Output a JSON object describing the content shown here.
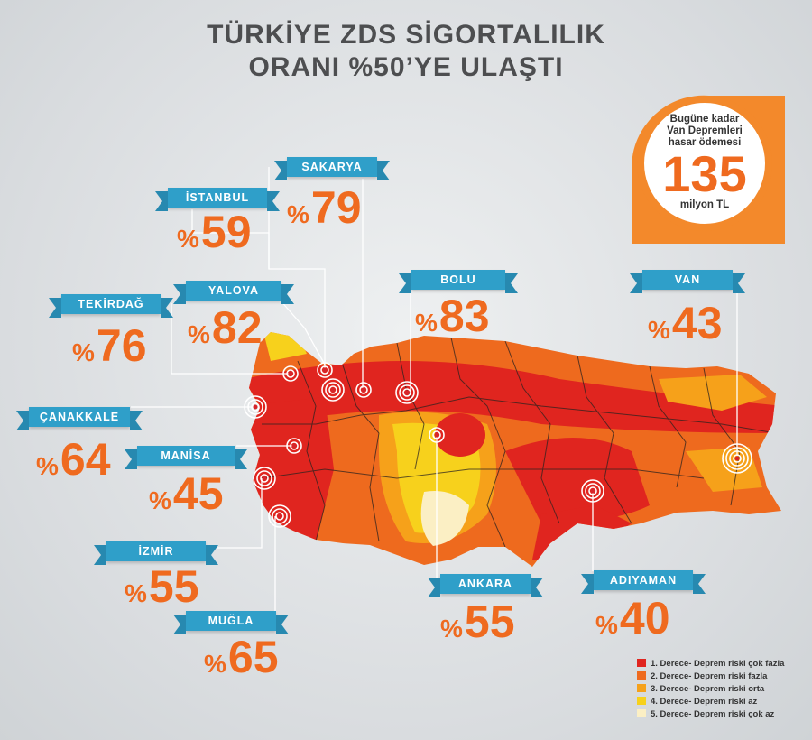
{
  "title": {
    "line1": "TÜRKİYE ZDS SİGORTALILIK",
    "line2": "ORANI %50’YE ULAŞTI"
  },
  "badge": {
    "line1": "Bugüne kadar",
    "line2": "Van Depremleri",
    "line3": "hasar ödemesi",
    "value": "135",
    "unit": "milyon TL"
  },
  "percent_symbol": "%",
  "provinces": [
    {
      "id": "istanbul",
      "name": "İSTANBUL",
      "value": "59"
    },
    {
      "id": "sakarya",
      "name": "SAKARYA",
      "value": "79"
    },
    {
      "id": "yalova",
      "name": "YALOVA",
      "value": "82"
    },
    {
      "id": "tekirdag",
      "name": "TEKİRDAĞ",
      "value": "76"
    },
    {
      "id": "bolu",
      "name": "BOLU",
      "value": "83"
    },
    {
      "id": "van",
      "name": "VAN",
      "value": "43"
    },
    {
      "id": "canakkale",
      "name": "ÇANAKKALE",
      "value": "64"
    },
    {
      "id": "manisa",
      "name": "MANİSA",
      "value": "45"
    },
    {
      "id": "izmir",
      "name": "İZMİR",
      "value": "55"
    },
    {
      "id": "mugla",
      "name": "MUĞLA",
      "value": "65"
    },
    {
      "id": "ankara",
      "name": "ANKARA",
      "value": "55"
    },
    {
      "id": "adiyaman",
      "name": "ADIYAMAN",
      "value": "40"
    }
  ],
  "legend": [
    {
      "label": "1. Derece- Deprem riski çok fazla",
      "color": "#e0251f"
    },
    {
      "label": "2. Derece- Deprem riski fazla",
      "color": "#ee6a1e"
    },
    {
      "label": "3. Derece- Deprem riski orta",
      "color": "#f6a11a"
    },
    {
      "label": "4. Derece- Deprem riski az",
      "color": "#f7d11c"
    },
    {
      "label": "5. Derece- Deprem riski çok az",
      "color": "#fbefc4"
    }
  ],
  "colors": {
    "accent": "#ef6a1f",
    "ribbon": "#2f9fc9",
    "title": "#4d4e50"
  }
}
